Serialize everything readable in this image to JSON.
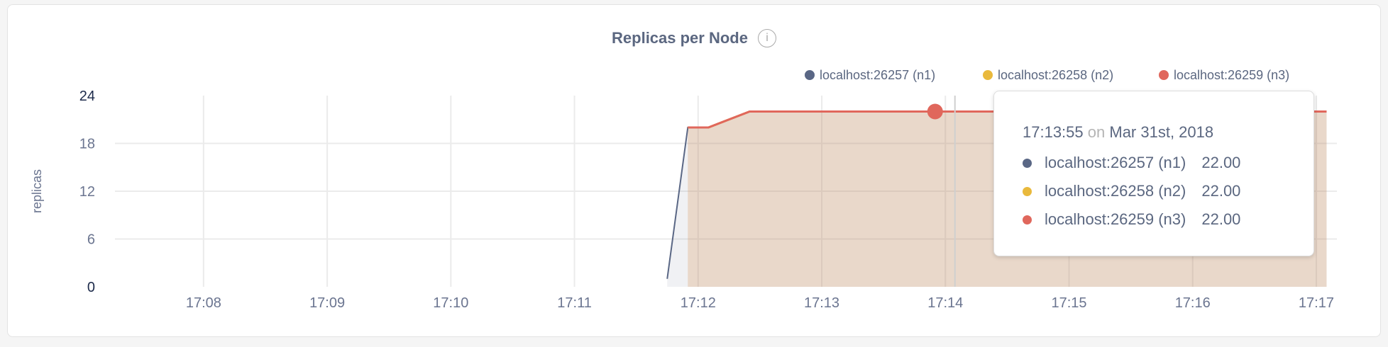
{
  "chart_data": {
    "type": "area",
    "title": "Replicas per Node",
    "ylabel": "replicas",
    "xlabel": "",
    "ylim": [
      0,
      24
    ],
    "yticks": [
      "0",
      "6",
      "12",
      "18",
      "24"
    ],
    "xlim": [
      "17:07:17",
      "17:17:10"
    ],
    "xticks": [
      "17:08",
      "17:09",
      "17:10",
      "17:11",
      "17:12",
      "17:13",
      "17:14",
      "17:15",
      "17:16",
      "17:17"
    ],
    "grid": true,
    "legend_position": "top-right",
    "series": [
      {
        "name": "localhost:26257 (n1)",
        "color": "#5a6785",
        "points": [
          [
            "17:11:45",
            1
          ],
          [
            "17:11:55",
            20
          ],
          [
            "17:12:05",
            20
          ],
          [
            "17:12:25",
            22
          ],
          [
            "17:17:05",
            22
          ]
        ]
      },
      {
        "name": "localhost:26258 (n2)",
        "color": "#e9b93c",
        "points": [
          [
            "17:11:55",
            20
          ],
          [
            "17:12:05",
            20
          ],
          [
            "17:12:25",
            22
          ],
          [
            "17:17:05",
            22
          ]
        ]
      },
      {
        "name": "localhost:26259 (n3)",
        "color": "#e0675c",
        "points": [
          [
            "17:11:55",
            20
          ],
          [
            "17:12:05",
            20
          ],
          [
            "17:12:25",
            22
          ],
          [
            "17:17:05",
            22
          ]
        ]
      }
    ],
    "hover_time": "17:13:55"
  },
  "info_icon": "info-icon",
  "tooltip": {
    "time": "17:13:55",
    "on": "on",
    "date": "Mar 31st, 2018",
    "rows": [
      {
        "label": "localhost:26257 (n1)",
        "value": "22.00",
        "color": "#5a6785"
      },
      {
        "label": "localhost:26258 (n2)",
        "value": "22.00",
        "color": "#e9b93c"
      },
      {
        "label": "localhost:26259 (n3)",
        "value": "22.00",
        "color": "#e0675c"
      }
    ]
  }
}
